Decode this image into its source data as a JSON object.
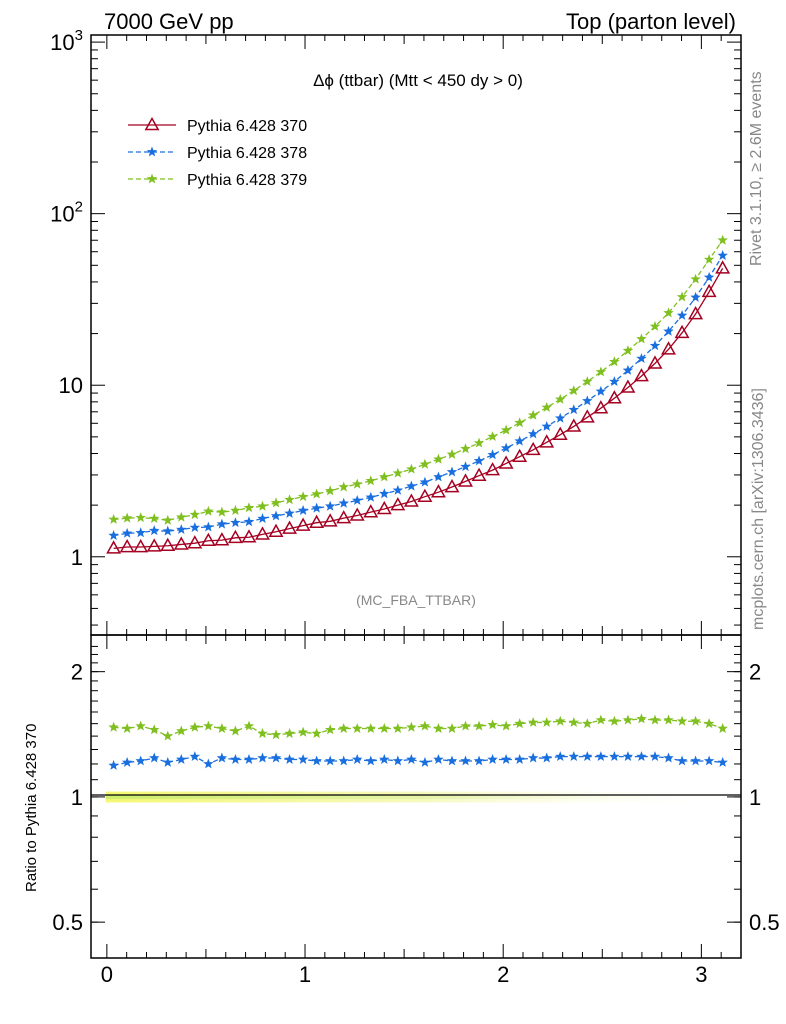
{
  "header": {
    "left": "7000 GeV pp",
    "right": "Top (parton level)"
  },
  "side": {
    "rivet": "Rivet 3.1.10, ≥ 2.6M events",
    "mcplots": "mcplots.cern.ch [arXiv:1306.3436]"
  },
  "chart_data": [
    {
      "type": "line",
      "title": "Δϕ (ttbar) (Mtt < 450 dy > 0)",
      "watermark": "(MC_FBA_TTBAR)",
      "yscale": "log",
      "xlim": [
        -0.08,
        3.2
      ],
      "ylim": [
        0.35,
        1100
      ],
      "x_ticks": [],
      "y_ticks": [
        {
          "v": 1,
          "label": "1"
        },
        {
          "v": 10,
          "label": "10"
        },
        {
          "v": 100,
          "label": "10^2"
        },
        {
          "v": 1000,
          "label": "10^3"
        }
      ],
      "legend_position": "top-left",
      "series": [
        {
          "name": "Pythia 6.428 370",
          "color": "#a50021",
          "marker": "open-triangle",
          "dashed": false,
          "values": [
            1.12,
            1.14,
            1.14,
            1.15,
            1.16,
            1.18,
            1.2,
            1.24,
            1.25,
            1.29,
            1.3,
            1.35,
            1.4,
            1.46,
            1.52,
            1.58,
            1.61,
            1.68,
            1.74,
            1.82,
            1.9,
            2.0,
            2.1,
            2.24,
            2.38,
            2.55,
            2.75,
            2.97,
            3.2,
            3.5,
            3.83,
            4.2,
            4.65,
            5.15,
            5.75,
            6.5,
            7.35,
            8.4,
            9.7,
            11.3,
            13.4,
            16.2,
            20.2,
            26.0,
            35.0,
            48.0
          ]
        },
        {
          "name": "Pythia 6.428 378",
          "color": "#1a6fdf",
          "marker": "star",
          "dashed": true,
          "values": [
            1.33,
            1.37,
            1.38,
            1.42,
            1.41,
            1.44,
            1.48,
            1.49,
            1.55,
            1.58,
            1.6,
            1.67,
            1.73,
            1.79,
            1.86,
            1.92,
            1.97,
            2.05,
            2.13,
            2.22,
            2.33,
            2.44,
            2.58,
            2.72,
            2.92,
            3.12,
            3.35,
            3.62,
            3.93,
            4.3,
            4.72,
            5.2,
            5.75,
            6.42,
            7.2,
            8.1,
            9.2,
            10.5,
            12.2,
            14.3,
            17.0,
            20.6,
            25.5,
            32.5,
            42.5,
            57.0
          ]
        },
        {
          "name": "Pythia 6.428 379",
          "color": "#7fbf1f",
          "marker": "star",
          "dashed": true,
          "values": [
            1.65,
            1.68,
            1.69,
            1.67,
            1.63,
            1.7,
            1.76,
            1.84,
            1.82,
            1.86,
            1.93,
            1.97,
            2.06,
            2.15,
            2.24,
            2.32,
            2.42,
            2.55,
            2.65,
            2.77,
            2.92,
            3.07,
            3.24,
            3.46,
            3.7,
            3.95,
            4.26,
            4.6,
            5.02,
            5.47,
            6.04,
            6.68,
            7.42,
            8.27,
            9.3,
            10.5,
            11.95,
            13.7,
            15.9,
            18.6,
            22.0,
            26.4,
            32.7,
            41.5,
            54.0,
            70.0
          ]
        }
      ]
    },
    {
      "type": "line",
      "ylabel": "Ratio to Pythia 6.428 370",
      "yscale": "log",
      "xlim": [
        -0.08,
        3.2
      ],
      "ylim": [
        0.41,
        2.45
      ],
      "x_ticks": [
        0,
        1,
        2,
        3
      ],
      "y_ticks": [
        {
          "v": 0.5,
          "label": "0.5"
        },
        {
          "v": 1,
          "label": "1"
        },
        {
          "v": 2,
          "label": "2"
        }
      ],
      "series": [
        {
          "name": "Pythia 6.428 378",
          "color": "#1a6fdf",
          "marker": "star",
          "dashed": true,
          "values": [
            1.19,
            1.21,
            1.22,
            1.24,
            1.21,
            1.23,
            1.25,
            1.2,
            1.24,
            1.23,
            1.23,
            1.24,
            1.24,
            1.23,
            1.23,
            1.22,
            1.22,
            1.22,
            1.23,
            1.22,
            1.23,
            1.22,
            1.23,
            1.21,
            1.23,
            1.22,
            1.22,
            1.22,
            1.23,
            1.23,
            1.23,
            1.24,
            1.24,
            1.25,
            1.25,
            1.25,
            1.25,
            1.25,
            1.25,
            1.25,
            1.25,
            1.24,
            1.22,
            1.22,
            1.22,
            1.21
          ]
        },
        {
          "name": "Pythia 6.428 379",
          "color": "#7fbf1f",
          "marker": "star",
          "dashed": true,
          "values": [
            1.47,
            1.46,
            1.48,
            1.45,
            1.4,
            1.44,
            1.47,
            1.48,
            1.46,
            1.44,
            1.48,
            1.42,
            1.41,
            1.42,
            1.43,
            1.42,
            1.45,
            1.46,
            1.46,
            1.46,
            1.46,
            1.46,
            1.47,
            1.48,
            1.46,
            1.46,
            1.48,
            1.48,
            1.49,
            1.48,
            1.5,
            1.51,
            1.51,
            1.52,
            1.51,
            1.5,
            1.53,
            1.52,
            1.53,
            1.54,
            1.53,
            1.53,
            1.52,
            1.52,
            1.5,
            1.46
          ]
        }
      ]
    }
  ]
}
